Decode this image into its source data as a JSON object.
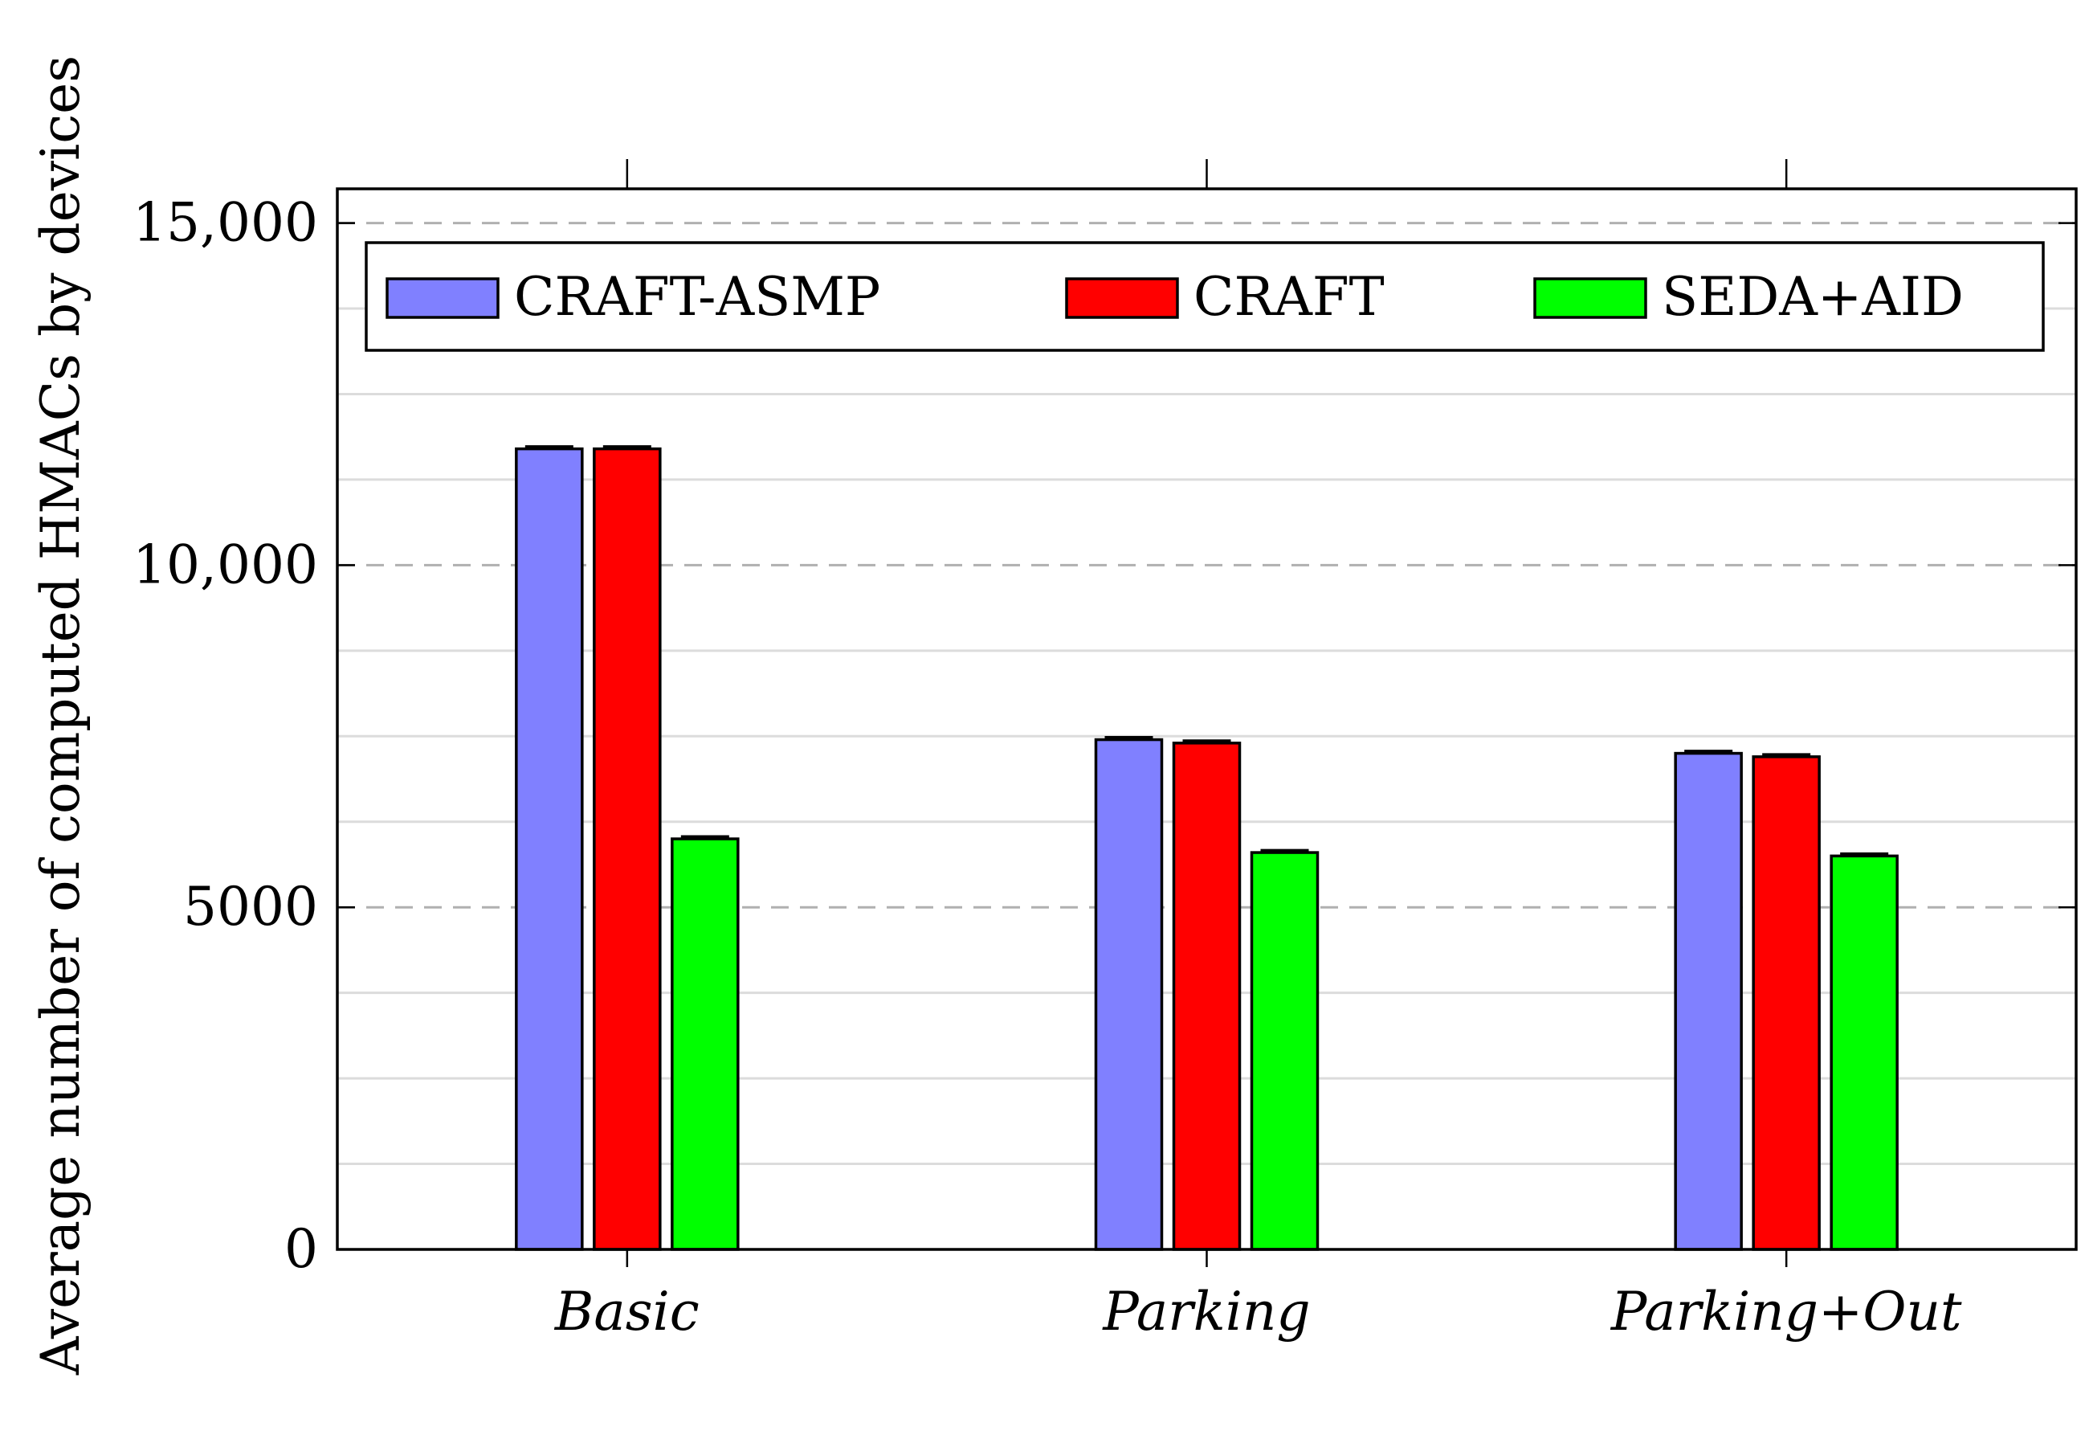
{
  "chart_data": {
    "type": "bar",
    "title": "",
    "xlabel": "",
    "ylabel": "Average number of computed HMACs by devices",
    "categories": [
      "Basic",
      "Parking",
      "Parking+Out"
    ],
    "series": [
      {
        "name": "CRAFT-ASMP",
        "color": "#8080ff",
        "values": [
          11700,
          7450,
          7250
        ]
      },
      {
        "name": "CRAFT",
        "color": "#ff0000",
        "values": [
          11700,
          7400,
          7200
        ]
      },
      {
        "name": "SEDA+AID",
        "color": "#00ff00",
        "values": [
          6000,
          5800,
          5750
        ]
      }
    ],
    "ylim": [
      0,
      15500
    ],
    "yticks": [
      0,
      5000,
      10000,
      15000
    ],
    "ytick_labels": [
      "0",
      "5000",
      "10,000",
      "15,000"
    ],
    "minor_grid_step": 1250,
    "grid": true,
    "error_bars": true,
    "legend_position": "top"
  }
}
